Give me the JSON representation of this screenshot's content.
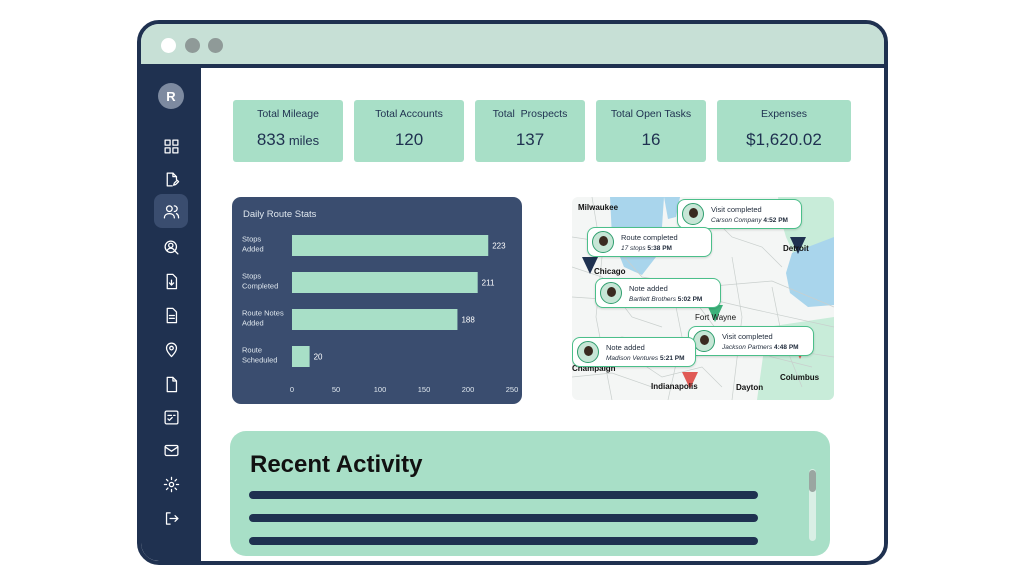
{
  "sidebar": {
    "avatar_letter": "R",
    "items": [
      {
        "name": "dashboard-icon"
      },
      {
        "name": "edit-document-icon"
      },
      {
        "name": "users-icon"
      },
      {
        "name": "search-user-icon"
      },
      {
        "name": "download-file-icon"
      },
      {
        "name": "document-icon"
      },
      {
        "name": "location-pin-icon"
      },
      {
        "name": "file-icon"
      },
      {
        "name": "checklist-icon"
      },
      {
        "name": "mail-icon"
      },
      {
        "name": "gear-icon"
      },
      {
        "name": "logout-icon"
      }
    ]
  },
  "stats": [
    {
      "label": "Total Mileage",
      "value": "833",
      "unit": " miles"
    },
    {
      "label": "Total Accounts",
      "value": "120",
      "unit": ""
    },
    {
      "label": "Total  Prospects",
      "value": "137",
      "unit": ""
    },
    {
      "label": "Total Open Tasks",
      "value": "16",
      "unit": ""
    },
    {
      "label": "Expenses",
      "value": "$1,620.02",
      "unit": ""
    }
  ],
  "chart_data": {
    "type": "bar",
    "orientation": "horizontal",
    "title": "Daily Route Stats",
    "categories": [
      [
        "Stops",
        "Added"
      ],
      [
        "Stops",
        "Completed"
      ],
      [
        "Route Notes",
        "Added"
      ],
      [
        "Route",
        "Scheduled"
      ]
    ],
    "values": [
      223,
      211,
      188,
      20
    ],
    "xlim": [
      0,
      250
    ],
    "xticks": [
      0,
      50,
      100,
      150,
      200,
      250
    ],
    "bar_color": "#a8dfc7",
    "background": "#3a4d6f"
  },
  "map": {
    "cities": [
      "Milwaukee",
      "Chicago",
      "Detroit",
      "Fort Wayne",
      "Champaign",
      "Indianapolis",
      "Dayton",
      "Columbus"
    ],
    "events": [
      {
        "title": "Visit completed",
        "detail": "Carson Company",
        "time": "4:52 PM"
      },
      {
        "title": "Route completed",
        "detail": "17 stops",
        "time": "5:38 PM"
      },
      {
        "title": "Note added",
        "detail": "Bartlett Brothers",
        "time": "5:02 PM"
      },
      {
        "title": "Visit completed",
        "detail": "Jackson Partners",
        "time": "4:48 PM"
      },
      {
        "title": "Note added",
        "detail": "Madison Ventures",
        "time": "5:21 PM"
      }
    ]
  },
  "recent": {
    "title": "Recent Activity"
  },
  "colors": {
    "navy": "#1f3150",
    "mint": "#a8dfc7",
    "chart_bg": "#3a4d6f"
  }
}
